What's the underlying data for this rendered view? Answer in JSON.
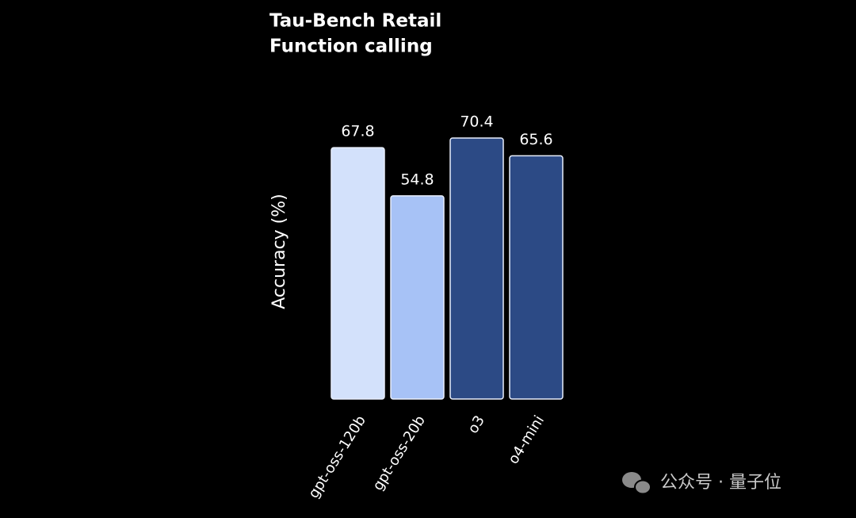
{
  "chart_data": {
    "type": "bar",
    "title": [
      "Tau-Bench Retail",
      "Function calling"
    ],
    "y_label": "Accuracy (%)",
    "categories": [
      "gpt-oss-120b",
      "gpt-oss-20b",
      "o3",
      "o4-mini"
    ],
    "values": [
      67.8,
      54.8,
      70.4,
      65.6
    ],
    "colors": [
      "#d3e1fb",
      "#a7c2f6",
      "#2c4a85",
      "#2c4a85"
    ]
  },
  "watermark": "公众号 · 量子位"
}
